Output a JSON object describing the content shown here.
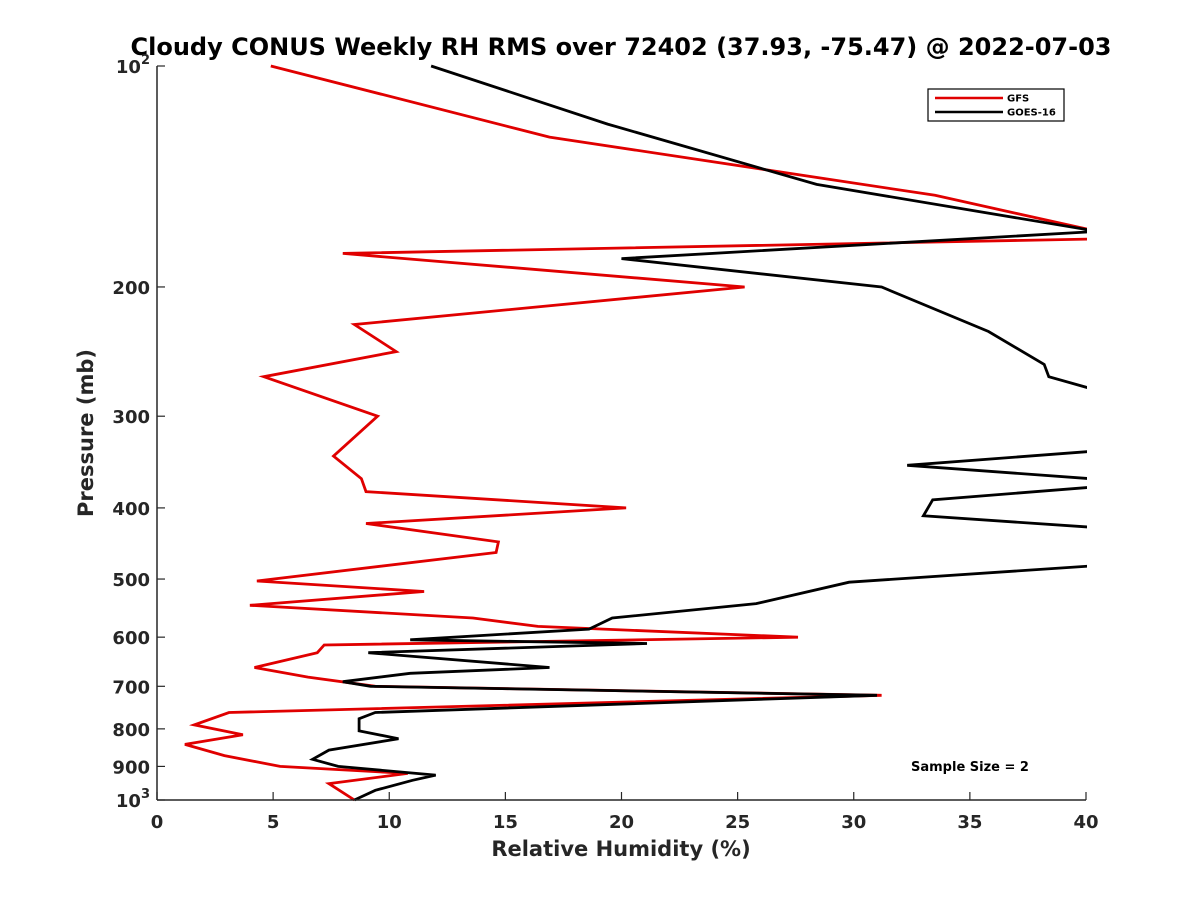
{
  "chart_data": {
    "type": "line",
    "title": "Cloudy CONUS Weekly RH RMS over 72402 (37.93, -75.47) @ 2022-07-03",
    "xlabel": "Relative Humidity (%)",
    "ylabel": "Pressure (mb)",
    "xlim": [
      0,
      40
    ],
    "ylim": [
      100,
      1000
    ],
    "y_scale": "log",
    "y_reversed": true,
    "grid": false,
    "legend_position": "top-right",
    "x_ticks": [
      {
        "value": 0,
        "label": "0"
      },
      {
        "value": 5,
        "label": "5"
      },
      {
        "value": 10,
        "label": "10"
      },
      {
        "value": 15,
        "label": "15"
      },
      {
        "value": 20,
        "label": "20"
      },
      {
        "value": 25,
        "label": "25"
      },
      {
        "value": 30,
        "label": "30"
      },
      {
        "value": 35,
        "label": "35"
      },
      {
        "value": 40,
        "label": "40"
      }
    ],
    "y_ticks": [
      {
        "value": 100,
        "label": "10",
        "sup": "2"
      },
      {
        "value": 200,
        "label": "200"
      },
      {
        "value": 300,
        "label": "300"
      },
      {
        "value": 400,
        "label": "400"
      },
      {
        "value": 500,
        "label": "500"
      },
      {
        "value": 600,
        "label": "600"
      },
      {
        "value": 700,
        "label": "700"
      },
      {
        "value": 800,
        "label": "800"
      },
      {
        "value": 900,
        "label": "900"
      },
      {
        "value": 1000,
        "label": "10",
        "sup": "3"
      }
    ],
    "annotation": "Sample Size = 2",
    "series": [
      {
        "name": "GFS",
        "color": "#e00000",
        "points": [
          [
            4.9,
            100
          ],
          [
            16.9,
            125
          ],
          [
            33.5,
            150
          ],
          [
            40.5,
            168
          ],
          [
            40.5,
            172
          ],
          [
            8.0,
            180
          ],
          [
            25.3,
            200
          ],
          [
            8.5,
            225
          ],
          [
            10.3,
            245
          ],
          [
            4.6,
            265
          ],
          [
            9.5,
            300
          ],
          [
            7.6,
            340
          ],
          [
            8.8,
            365
          ],
          [
            9.0,
            380
          ],
          [
            20.2,
            400
          ],
          [
            9.0,
            420
          ],
          [
            14.7,
            445
          ],
          [
            14.6,
            460
          ],
          [
            4.3,
            503
          ],
          [
            11.5,
            520
          ],
          [
            4.0,
            543
          ],
          [
            13.6,
            565
          ],
          [
            16.4,
            580
          ],
          [
            27.6,
            600
          ],
          [
            7.2,
            615
          ],
          [
            6.9,
            630
          ],
          [
            4.2,
            660
          ],
          [
            6.5,
            680
          ],
          [
            9.4,
            700
          ],
          [
            31.2,
            720
          ],
          [
            3.1,
            760
          ],
          [
            1.6,
            790
          ],
          [
            3.7,
            815
          ],
          [
            1.2,
            840
          ],
          [
            2.9,
            870
          ],
          [
            5.3,
            900
          ],
          [
            10.8,
            920
          ],
          [
            7.4,
            950
          ],
          [
            8.5,
            1000
          ]
        ]
      },
      {
        "name": "GOES-16",
        "color": "#000000",
        "points": [
          [
            11.8,
            100
          ],
          [
            19.4,
            120
          ],
          [
            28.4,
            145
          ],
          [
            40.5,
            168
          ],
          [
            20.0,
            183
          ],
          [
            31.2,
            200
          ],
          [
            35.8,
            230
          ],
          [
            38.2,
            255
          ],
          [
            38.4,
            265
          ],
          [
            40.2,
            275
          ],
          [
            null,
            null
          ],
          [
            40.2,
            335
          ],
          [
            32.3,
            350
          ],
          [
            40.2,
            365
          ],
          [
            40.2,
            375
          ],
          [
            33.4,
            390
          ],
          [
            33.0,
            410
          ],
          [
            40.2,
            425
          ],
          [
            null,
            null
          ],
          [
            40.2,
            480
          ],
          [
            29.8,
            505
          ],
          [
            25.8,
            540
          ],
          [
            19.6,
            565
          ],
          [
            18.6,
            585
          ],
          [
            10.9,
            605
          ],
          [
            21.1,
            612
          ],
          [
            9.1,
            630
          ],
          [
            16.9,
            660
          ],
          [
            10.9,
            672
          ],
          [
            8.0,
            690
          ],
          [
            9.2,
            700
          ],
          [
            31.0,
            720
          ],
          [
            9.4,
            760
          ],
          [
            8.7,
            775
          ],
          [
            8.7,
            805
          ],
          [
            10.4,
            825
          ],
          [
            7.4,
            855
          ],
          [
            6.7,
            880
          ],
          [
            7.8,
            900
          ],
          [
            12.0,
            925
          ],
          [
            11.0,
            940
          ],
          [
            9.4,
            970
          ],
          [
            8.5,
            1000
          ]
        ]
      }
    ]
  }
}
